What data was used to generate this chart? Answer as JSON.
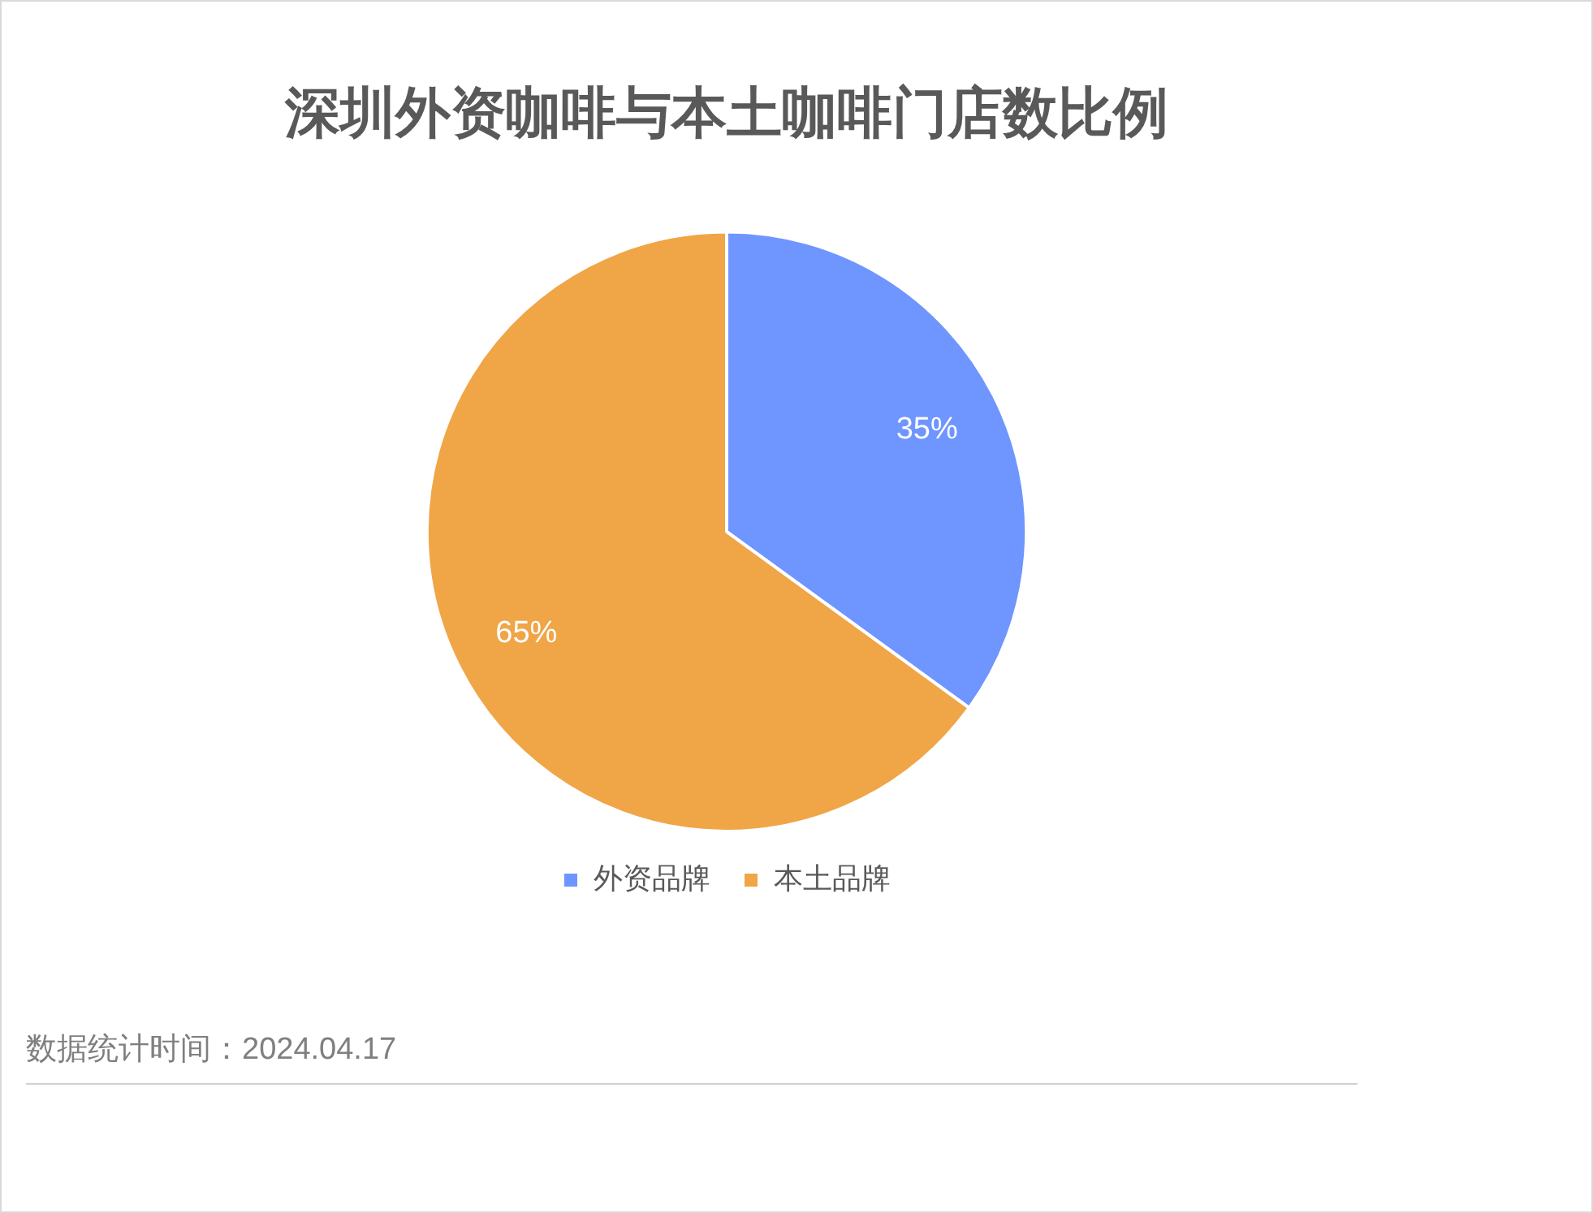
{
  "chart_data": {
    "type": "pie",
    "title": "深圳外资咖啡与本土咖啡门店数比例",
    "categories": [
      "外资品牌",
      "本土品牌"
    ],
    "values": [
      35,
      65
    ],
    "colors": [
      "#6f95fe",
      "#f0a546"
    ],
    "value_labels": [
      "35%",
      "65%"
    ],
    "legend": "bottom",
    "annotations": [
      "数据统计时间：2024.04.17"
    ]
  }
}
